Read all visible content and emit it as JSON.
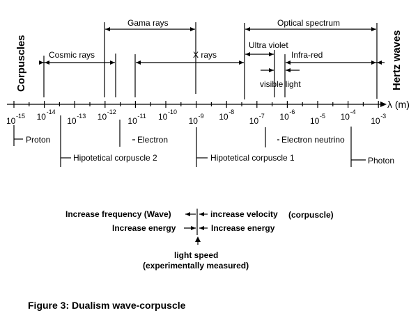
{
  "side_labels": {
    "left": "Corpuscles",
    "right": "Hertz waves"
  },
  "bands": {
    "gama": "Gama rays",
    "optical": "Optical spectrum",
    "cosmic": "Cosmic rays",
    "xrays": "X rays",
    "uv": "Ultra violet",
    "ir": "Infra-red",
    "visible": "visible light"
  },
  "axis": {
    "unit": "λ (m)",
    "ticks": [
      {
        "base": "10",
        "exp": "-15"
      },
      {
        "base": "10",
        "exp": "-14"
      },
      {
        "base": "10",
        "exp": "-13"
      },
      {
        "base": "10",
        "exp": "-12"
      },
      {
        "base": "10",
        "exp": "-11"
      },
      {
        "base": "10",
        "exp": "-10"
      },
      {
        "base": "10",
        "exp": "-9"
      },
      {
        "base": "10",
        "exp": "-8"
      },
      {
        "base": "10",
        "exp": "-7"
      },
      {
        "base": "10",
        "exp": "-6"
      },
      {
        "base": "10",
        "exp": "-5"
      },
      {
        "base": "10",
        "exp": "-4"
      },
      {
        "base": "10",
        "exp": "-3"
      }
    ]
  },
  "particles": {
    "proton": "Proton",
    "electron": "Electron",
    "hc2": "Hipotetical corpuscle 2",
    "hc1": "Hipotetical corpuscle 1",
    "eneutrino": "Electron neutrino",
    "photon": "Photon"
  },
  "legend": {
    "freq": "Increase frequency (Wave)",
    "vel": "increase velocity",
    "corp": "(corpuscle)",
    "energy_left": "Increase energy",
    "energy_right": "Increase energy",
    "speed": "light speed",
    "measured": "(experimentally measured)"
  },
  "caption": "Figure 3: Dualism wave-corpuscle"
}
